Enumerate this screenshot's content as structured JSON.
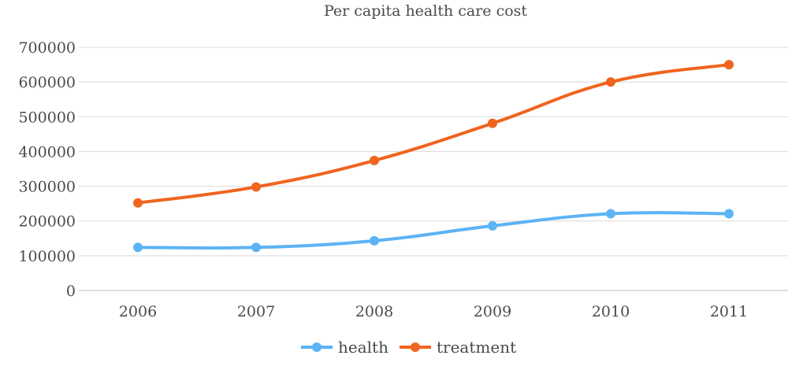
{
  "chart_data": {
    "type": "line",
    "title": "Per capita health care cost",
    "xlabel": "",
    "ylabel": "",
    "categories": [
      "2006",
      "2007",
      "2008",
      "2009",
      "2010",
      "2011"
    ],
    "y_ticks": [
      "0",
      "100000",
      "200000",
      "300000",
      "400000",
      "500000",
      "600000",
      "700000"
    ],
    "ylim": [
      0,
      700000
    ],
    "grid": true,
    "legend_position": "bottom",
    "series": [
      {
        "name": "health",
        "color": "#5cb3f5",
        "values": [
          124000,
          124000,
          143000,
          186000,
          221000,
          221000
        ]
      },
      {
        "name": "treatment",
        "color": "#f0641e",
        "values": [
          252000,
          298000,
          374000,
          481000,
          600000,
          650000
        ]
      }
    ]
  }
}
